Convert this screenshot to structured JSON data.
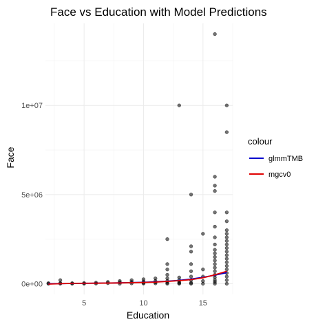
{
  "chart_data": {
    "type": "scatter",
    "title": "Face vs Education with Model Predictions",
    "xlabel": "Education",
    "ylabel": "Face",
    "xlim": [
      1.75,
      17.5
    ],
    "ylim": [
      -600000,
      14600000
    ],
    "x_ticks": [
      {
        "value": 5,
        "label": "5"
      },
      {
        "value": 10,
        "label": "10"
      },
      {
        "value": 15,
        "label": "15"
      }
    ],
    "y_ticks": [
      {
        "value": 0,
        "label": "0e+00"
      },
      {
        "value": 5000000,
        "label": "5e+06"
      },
      {
        "value": 10000000,
        "label": "1e+07"
      }
    ],
    "grid": true,
    "legend": {
      "title": "colour",
      "placement": "right",
      "entries": [
        {
          "label": "glmmTMB",
          "color": "#0000cd"
        },
        {
          "label": "mgcv0",
          "color": "#e00000"
        }
      ]
    },
    "series": [
      {
        "name": "glmmTMB",
        "kind": "line",
        "color": "#0000cd",
        "x": [
          2,
          4,
          6,
          8,
          10,
          11,
          12,
          13,
          14,
          15,
          16,
          17
        ],
        "y": [
          0,
          15000,
          30000,
          50000,
          80000,
          105000,
          140000,
          190000,
          260000,
          360000,
          480000,
          620000
        ]
      },
      {
        "name": "mgcv0",
        "kind": "line",
        "color": "#e00000",
        "x": [
          2,
          4,
          6,
          8,
          10,
          11,
          12,
          13,
          14,
          15,
          16,
          17
        ],
        "y": [
          -20000,
          20000,
          30000,
          45000,
          70000,
          90000,
          130000,
          170000,
          230000,
          330000,
          500000,
          700000
        ]
      },
      {
        "name": "",
        "kind": "points",
        "color": "#000000",
        "points": [
          [
            2,
            0
          ],
          [
            2,
            30000
          ],
          [
            3,
            200000
          ],
          [
            3,
            0
          ],
          [
            3,
            40000
          ],
          [
            4,
            0
          ],
          [
            4,
            30000
          ],
          [
            5,
            0
          ],
          [
            5,
            40000
          ],
          [
            6,
            10000
          ],
          [
            6,
            60000
          ],
          [
            7,
            30000
          ],
          [
            7,
            100000
          ],
          [
            8,
            0
          ],
          [
            8,
            80000
          ],
          [
            8,
            150000
          ],
          [
            9,
            20000
          ],
          [
            9,
            100000
          ],
          [
            9,
            200000
          ],
          [
            10,
            10000
          ],
          [
            10,
            50000
          ],
          [
            10,
            120000
          ],
          [
            10,
            250000
          ],
          [
            11,
            20000
          ],
          [
            11,
            80000
          ],
          [
            11,
            150000
          ],
          [
            11,
            300000
          ],
          [
            12,
            2500000
          ],
          [
            12,
            1100000
          ],
          [
            12,
            800000
          ],
          [
            12,
            500000
          ],
          [
            12,
            300000
          ],
          [
            12,
            150000
          ],
          [
            12,
            50000
          ],
          [
            12,
            0
          ],
          [
            13,
            10000000
          ],
          [
            13,
            350000
          ],
          [
            13,
            200000
          ],
          [
            13,
            100000
          ],
          [
            13,
            30000
          ],
          [
            13,
            0
          ],
          [
            14,
            5000000
          ],
          [
            14,
            2100000
          ],
          [
            14,
            1800000
          ],
          [
            14,
            1100000
          ],
          [
            14,
            700000
          ],
          [
            14,
            400000
          ],
          [
            14,
            200000
          ],
          [
            14,
            50000
          ],
          [
            14,
            0
          ],
          [
            15,
            2800000
          ],
          [
            15,
            800000
          ],
          [
            15,
            400000
          ],
          [
            15,
            150000
          ],
          [
            15,
            0
          ],
          [
            16,
            14000000
          ],
          [
            16,
            6000000
          ],
          [
            16,
            5500000
          ],
          [
            16,
            5200000
          ],
          [
            16,
            4000000
          ],
          [
            16,
            3200000
          ],
          [
            16,
            2600000
          ],
          [
            16,
            2200000
          ],
          [
            16,
            1900000
          ],
          [
            16,
            1700000
          ],
          [
            16,
            1500000
          ],
          [
            16,
            1300000
          ],
          [
            16,
            1100000
          ],
          [
            16,
            900000
          ],
          [
            16,
            700000
          ],
          [
            16,
            500000
          ],
          [
            16,
            350000
          ],
          [
            16,
            200000
          ],
          [
            16,
            100000
          ],
          [
            16,
            0
          ],
          [
            17,
            10000000
          ],
          [
            17,
            8500000
          ],
          [
            17,
            4000000
          ],
          [
            17,
            3500000
          ],
          [
            17,
            3000000
          ],
          [
            17,
            2800000
          ],
          [
            17,
            2600000
          ],
          [
            17,
            2400000
          ],
          [
            17,
            2200000
          ],
          [
            17,
            2000000
          ],
          [
            17,
            1800000
          ],
          [
            17,
            1600000
          ],
          [
            17,
            1400000
          ],
          [
            17,
            1200000
          ],
          [
            17,
            1000000
          ],
          [
            17,
            800000
          ],
          [
            17,
            600000
          ],
          [
            17,
            400000
          ],
          [
            17,
            200000
          ],
          [
            17,
            0
          ]
        ]
      }
    ]
  }
}
